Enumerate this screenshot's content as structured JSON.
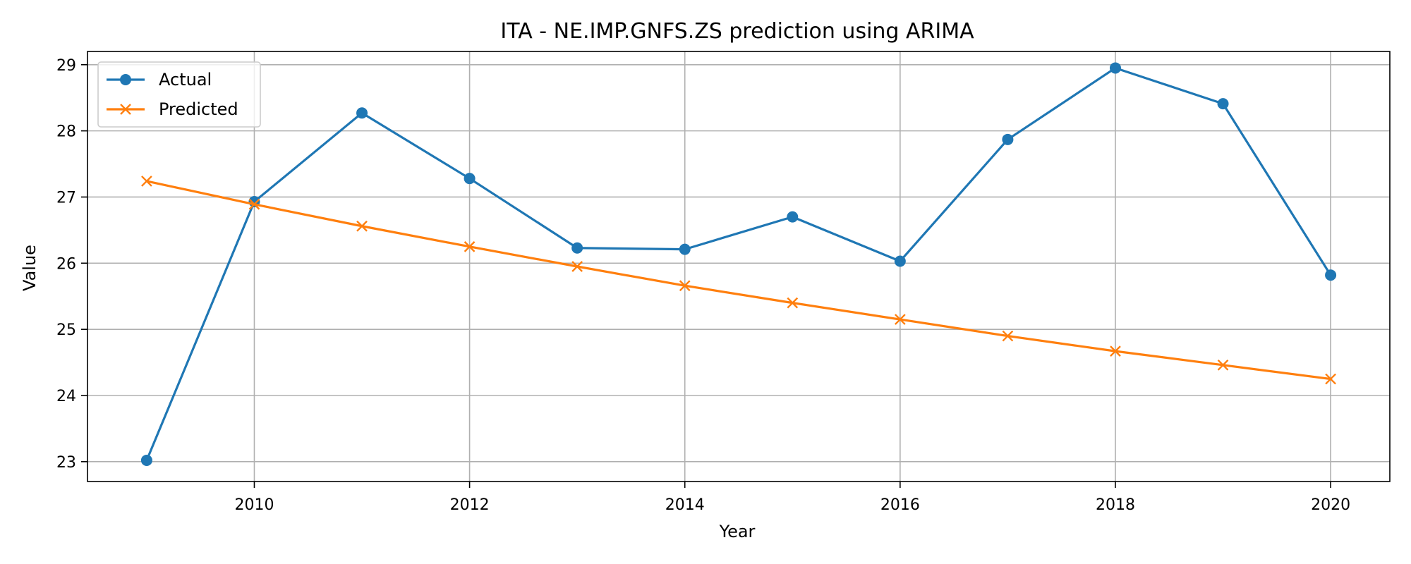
{
  "chart_data": {
    "type": "line",
    "title": "ITA - NE.IMP.GNFS.ZS prediction using ARIMA",
    "xlabel": "Year",
    "ylabel": "Value",
    "x": [
      2009,
      2010,
      2011,
      2012,
      2013,
      2014,
      2015,
      2016,
      2017,
      2018,
      2019,
      2020
    ],
    "x_ticks": [
      2010,
      2012,
      2014,
      2016,
      2018,
      2020
    ],
    "y_ticks": [
      23,
      24,
      25,
      26,
      27,
      28,
      29
    ],
    "xlim": [
      2008.45,
      2020.55
    ],
    "ylim": [
      22.7,
      29.2
    ],
    "grid": true,
    "legend_position": "top-left",
    "series": [
      {
        "name": "Actual",
        "color": "#1f77b4",
        "marker": "circle",
        "values": [
          23.02,
          26.93,
          28.27,
          27.28,
          26.23,
          26.21,
          26.7,
          26.03,
          27.87,
          28.95,
          28.41,
          25.82
        ]
      },
      {
        "name": "Predicted",
        "color": "#ff7f0e",
        "marker": "x",
        "values": [
          27.24,
          26.89,
          26.56,
          26.25,
          25.95,
          25.66,
          25.4,
          25.15,
          24.9,
          24.67,
          24.46,
          24.25
        ]
      }
    ]
  }
}
